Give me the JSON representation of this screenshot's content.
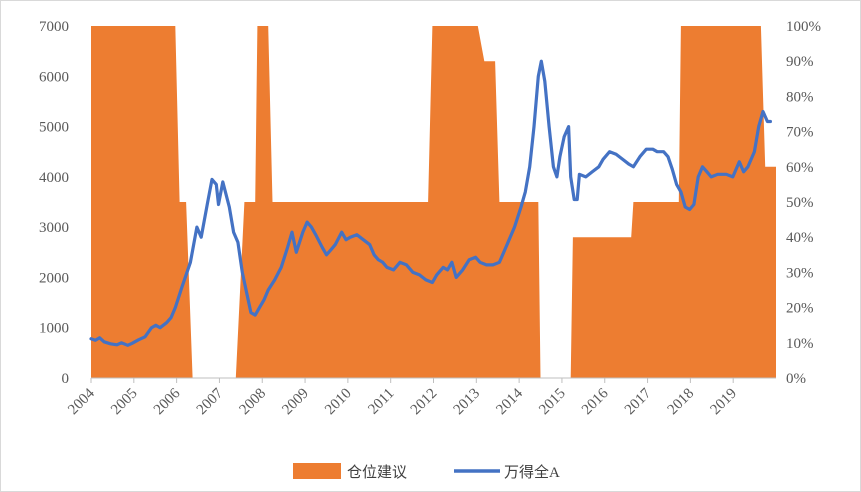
{
  "chart_data": {
    "type": "area+line",
    "legend_position": "bottom",
    "grid": false,
    "x_ticks": [
      "2004",
      "2005",
      "2006",
      "2007",
      "2008",
      "2009",
      "2010",
      "2011",
      "2012",
      "2013",
      "2014",
      "2015",
      "2016",
      "2017",
      "2018",
      "2019"
    ],
    "y_left": {
      "min": 0,
      "max": 7000,
      "ticks": [
        "0",
        "1000",
        "2000",
        "3000",
        "4000",
        "5000",
        "6000",
        "7000"
      ]
    },
    "y_right": {
      "min": 0,
      "max": 1.0,
      "ticks": [
        "0%",
        "10%",
        "20%",
        "30%",
        "40%",
        "50%",
        "60%",
        "70%",
        "80%",
        "90%",
        "100%"
      ]
    },
    "series": [
      {
        "name": "仓位建议",
        "kind": "area",
        "axis": "right",
        "color": "#ED7D31",
        "points": [
          [
            2004.0,
            1.0
          ],
          [
            2005.95,
            1.0
          ],
          [
            2006.05,
            0.5
          ],
          [
            2006.2,
            0.5
          ],
          [
            2006.35,
            0.0
          ],
          [
            2007.35,
            0.0
          ],
          [
            2007.55,
            0.5
          ],
          [
            2007.8,
            0.5
          ],
          [
            2007.85,
            1.0
          ],
          [
            2008.1,
            1.0
          ],
          [
            2008.2,
            0.5
          ],
          [
            2011.8,
            0.5
          ],
          [
            2011.9,
            1.0
          ],
          [
            2012.95,
            1.0
          ],
          [
            2013.1,
            0.9
          ],
          [
            2013.35,
            0.9
          ],
          [
            2013.45,
            0.5
          ],
          [
            2014.35,
            0.5
          ],
          [
            2014.4,
            0.0
          ],
          [
            2015.1,
            0.0
          ],
          [
            2015.15,
            0.4
          ],
          [
            2016.5,
            0.4
          ],
          [
            2016.55,
            0.5
          ],
          [
            2017.6,
            0.5
          ],
          [
            2017.65,
            1.0
          ],
          [
            2019.5,
            1.0
          ],
          [
            2019.6,
            0.6
          ],
          [
            2019.85,
            0.6
          ]
        ]
      },
      {
        "name": "万得全A",
        "kind": "line",
        "axis": "left",
        "color": "#4472C4",
        "points": [
          [
            2004.0,
            780
          ],
          [
            2004.1,
            750
          ],
          [
            2004.2,
            800
          ],
          [
            2004.3,
            720
          ],
          [
            2004.45,
            680
          ],
          [
            2004.6,
            660
          ],
          [
            2004.7,
            700
          ],
          [
            2004.85,
            650
          ],
          [
            2004.95,
            690
          ],
          [
            2005.1,
            760
          ],
          [
            2005.25,
            820
          ],
          [
            2005.4,
            1000
          ],
          [
            2005.5,
            1050
          ],
          [
            2005.6,
            1000
          ],
          [
            2005.75,
            1100
          ],
          [
            2005.85,
            1200
          ],
          [
            2005.95,
            1400
          ],
          [
            2006.1,
            1800
          ],
          [
            2006.3,
            2300
          ],
          [
            2006.45,
            3000
          ],
          [
            2006.55,
            2800
          ],
          [
            2006.7,
            3500
          ],
          [
            2006.8,
            3950
          ],
          [
            2006.9,
            3850
          ],
          [
            2006.95,
            3450
          ],
          [
            2007.05,
            3900
          ],
          [
            2007.2,
            3400
          ],
          [
            2007.3,
            2900
          ],
          [
            2007.4,
            2700
          ],
          [
            2007.5,
            2100
          ],
          [
            2007.6,
            1700
          ],
          [
            2007.7,
            1300
          ],
          [
            2007.8,
            1250
          ],
          [
            2007.9,
            1400
          ],
          [
            2008.0,
            1550
          ],
          [
            2008.1,
            1750
          ],
          [
            2008.25,
            1950
          ],
          [
            2008.4,
            2200
          ],
          [
            2008.55,
            2600
          ],
          [
            2008.65,
            2900
          ],
          [
            2008.75,
            2500
          ],
          [
            2008.9,
            2900
          ],
          [
            2009.0,
            3100
          ],
          [
            2009.1,
            3000
          ],
          [
            2009.2,
            2850
          ],
          [
            2009.35,
            2600
          ],
          [
            2009.45,
            2450
          ],
          [
            2009.55,
            2550
          ],
          [
            2009.65,
            2650
          ],
          [
            2009.8,
            2900
          ],
          [
            2009.9,
            2750
          ],
          [
            2010.0,
            2800
          ],
          [
            2010.15,
            2850
          ],
          [
            2010.3,
            2750
          ],
          [
            2010.45,
            2650
          ],
          [
            2010.55,
            2450
          ],
          [
            2010.65,
            2350
          ],
          [
            2010.75,
            2300
          ],
          [
            2010.85,
            2200
          ],
          [
            2011.0,
            2150
          ],
          [
            2011.15,
            2300
          ],
          [
            2011.3,
            2250
          ],
          [
            2011.45,
            2100
          ],
          [
            2011.6,
            2050
          ],
          [
            2011.75,
            1950
          ],
          [
            2011.9,
            1900
          ],
          [
            2012.0,
            2050
          ],
          [
            2012.15,
            2200
          ],
          [
            2012.25,
            2150
          ],
          [
            2012.35,
            2300
          ],
          [
            2012.45,
            2000
          ],
          [
            2012.6,
            2150
          ],
          [
            2012.75,
            2350
          ],
          [
            2012.9,
            2400
          ],
          [
            2013.0,
            2300
          ],
          [
            2013.15,
            2250
          ],
          [
            2013.3,
            2250
          ],
          [
            2013.45,
            2300
          ],
          [
            2013.6,
            2600
          ],
          [
            2013.8,
            3000
          ],
          [
            2013.95,
            3400
          ],
          [
            2014.05,
            3700
          ],
          [
            2014.15,
            4200
          ],
          [
            2014.25,
            5000
          ],
          [
            2014.35,
            6000
          ],
          [
            2014.42,
            6300
          ],
          [
            2014.5,
            5900
          ],
          [
            2014.6,
            5000
          ],
          [
            2014.7,
            4200
          ],
          [
            2014.78,
            4000
          ],
          [
            2014.85,
            4400
          ],
          [
            2014.95,
            4800
          ],
          [
            2015.05,
            5000
          ],
          [
            2015.1,
            4000
          ],
          [
            2015.18,
            3550
          ],
          [
            2015.25,
            3550
          ],
          [
            2015.3,
            4050
          ],
          [
            2015.45,
            4000
          ],
          [
            2015.6,
            4100
          ],
          [
            2015.75,
            4200
          ],
          [
            2015.85,
            4350
          ],
          [
            2016.0,
            4500
          ],
          [
            2016.15,
            4450
          ],
          [
            2016.3,
            4350
          ],
          [
            2016.45,
            4250
          ],
          [
            2016.55,
            4200
          ],
          [
            2016.7,
            4400
          ],
          [
            2016.85,
            4550
          ],
          [
            2017.0,
            4550
          ],
          [
            2017.1,
            4500
          ],
          [
            2017.25,
            4500
          ],
          [
            2017.35,
            4400
          ],
          [
            2017.45,
            4150
          ],
          [
            2017.55,
            3850
          ],
          [
            2017.65,
            3700
          ],
          [
            2017.75,
            3400
          ],
          [
            2017.85,
            3350
          ],
          [
            2017.95,
            3450
          ],
          [
            2018.05,
            4000
          ],
          [
            2018.15,
            4200
          ],
          [
            2018.25,
            4100
          ],
          [
            2018.35,
            4000
          ],
          [
            2018.5,
            4050
          ],
          [
            2018.7,
            4050
          ],
          [
            2018.85,
            4000
          ],
          [
            2019.0,
            4300
          ],
          [
            2019.1,
            4100
          ],
          [
            2019.2,
            4200
          ],
          [
            2019.35,
            4500
          ],
          [
            2019.45,
            5000
          ],
          [
            2019.55,
            5300
          ],
          [
            2019.65,
            5100
          ],
          [
            2019.72,
            5100
          ]
        ]
      }
    ]
  }
}
